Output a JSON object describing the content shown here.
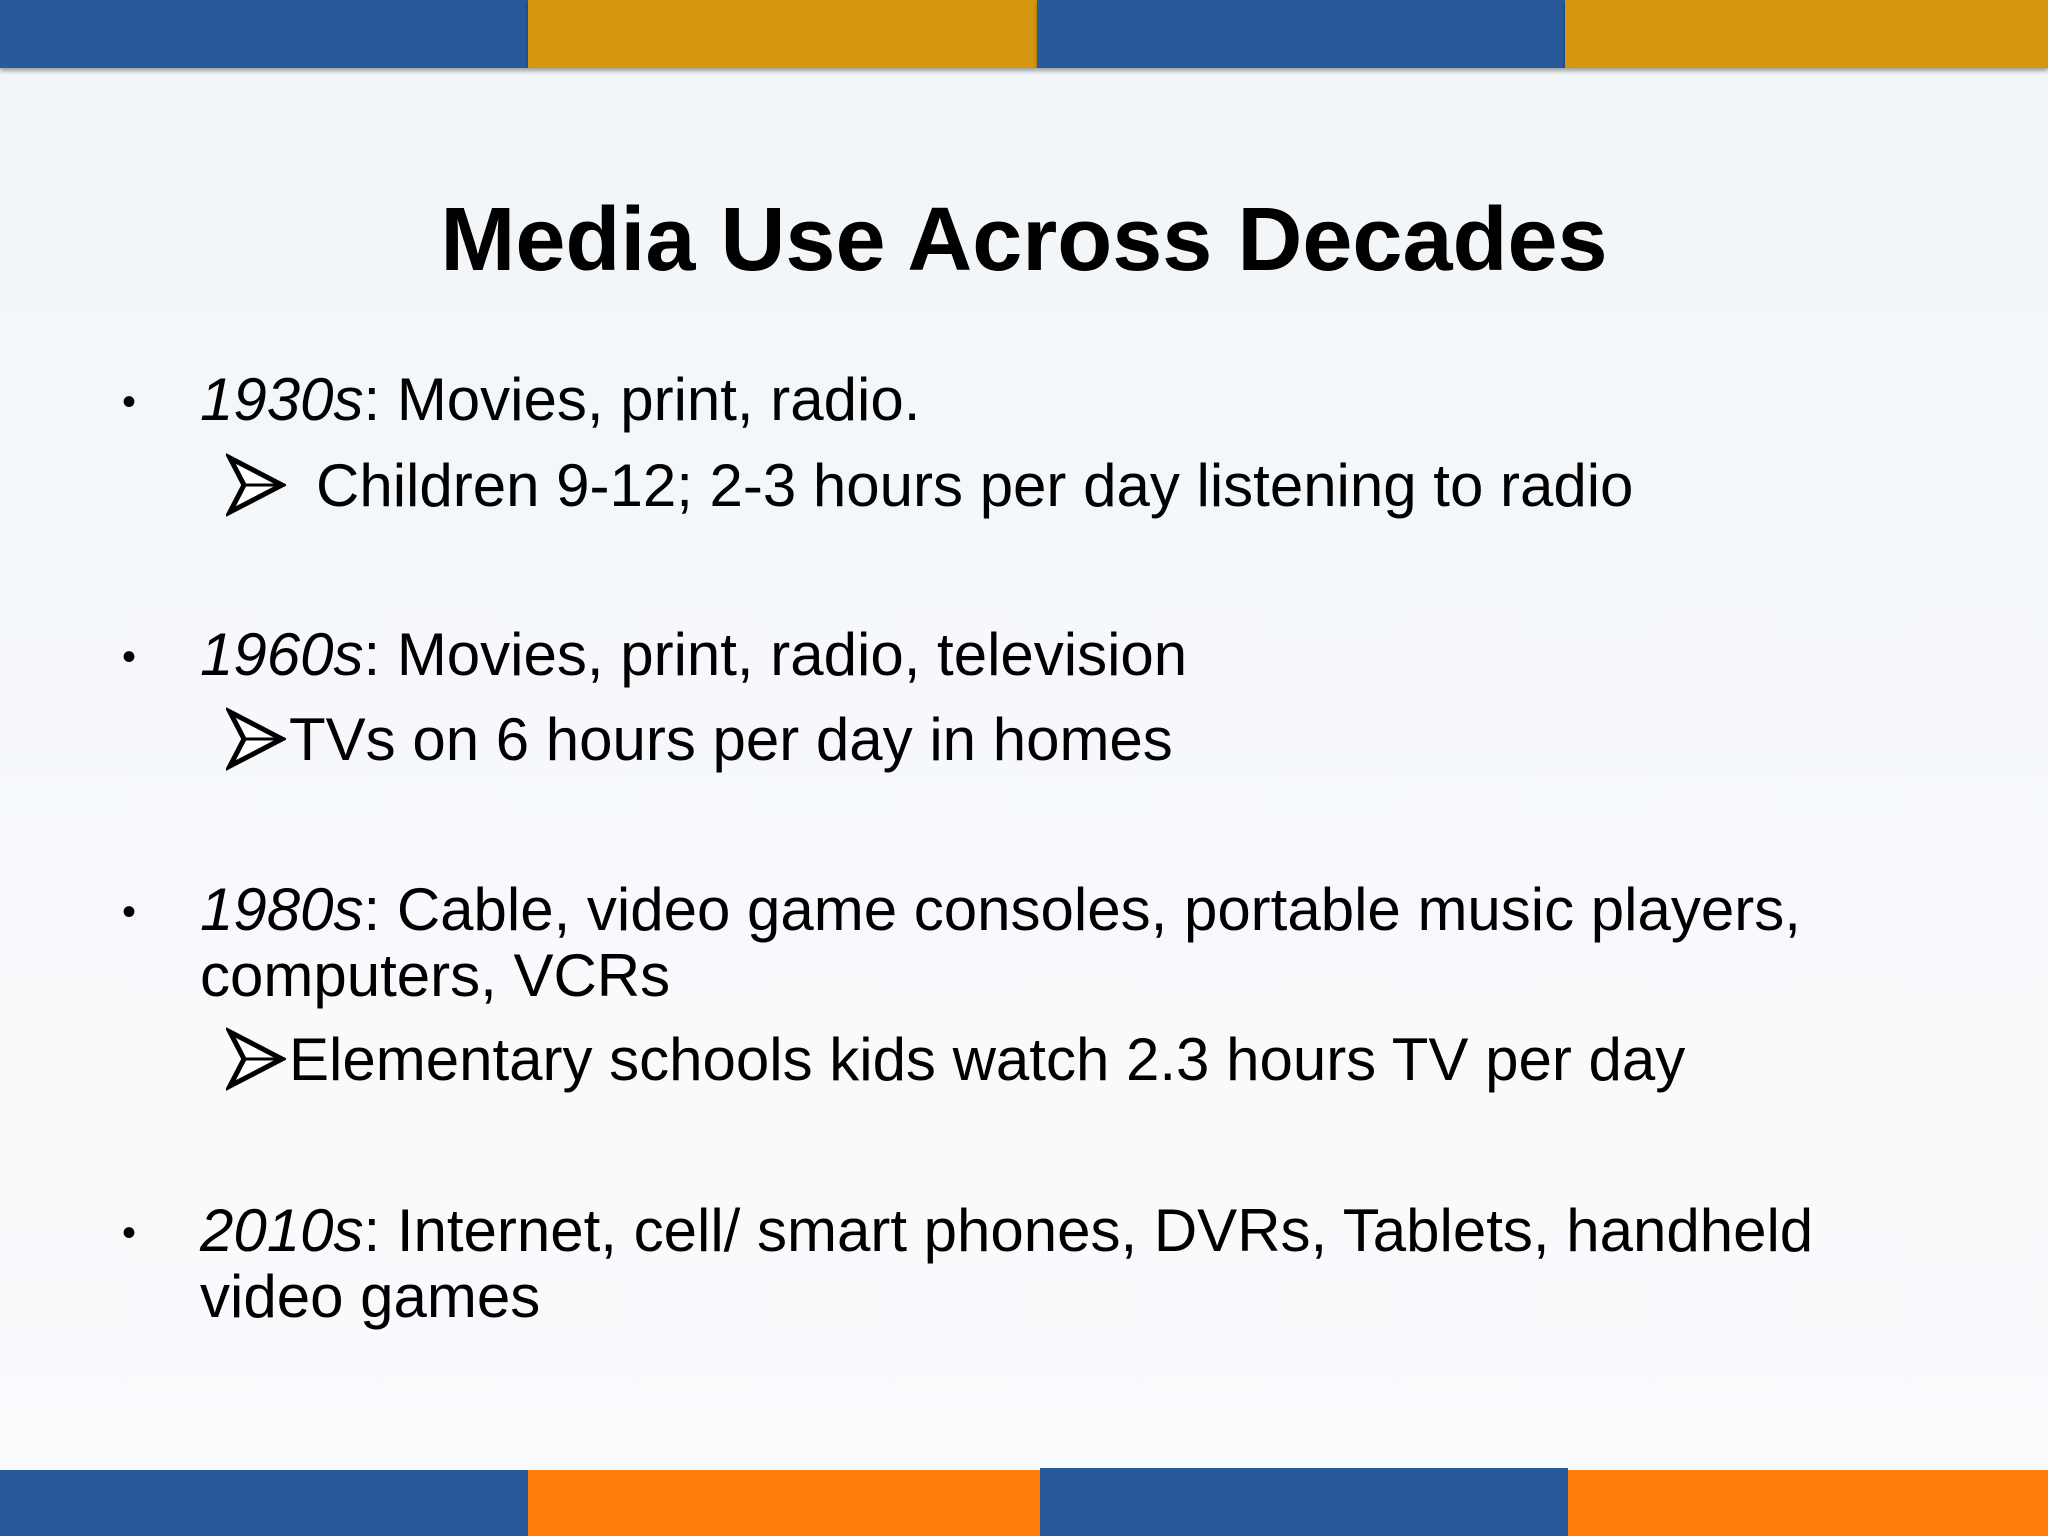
{
  "colors": {
    "band_blue": "#285a9b",
    "band_gold": "#d4970f",
    "band_orange": "#ff7f0e"
  },
  "slide": {
    "title": "Media Use Across Decades",
    "items": [
      {
        "decade": "1930s",
        "text": ": Movies, print, radio.",
        "sub": "Children 9-12; 2-3 hours per day listening to radio"
      },
      {
        "decade": "1960s",
        "text": ": Movies, print, radio, television",
        "sub": "TVs on 6 hours per day in homes"
      },
      {
        "decade": "1980s",
        "text": ": Cable, video game consoles, portable music players,",
        "text_cont": "computers, VCRs",
        "sub": "Elementary schools kids watch 2.3 hours TV per day"
      },
      {
        "decade": "2010s",
        "text": ": Internet, cell/ smart phones, DVRs, Tablets, handheld",
        "text_cont": "video games"
      }
    ],
    "bullet_icon": "bullet-dot-icon",
    "sub_bullet_icon": "arrowhead-icon"
  }
}
